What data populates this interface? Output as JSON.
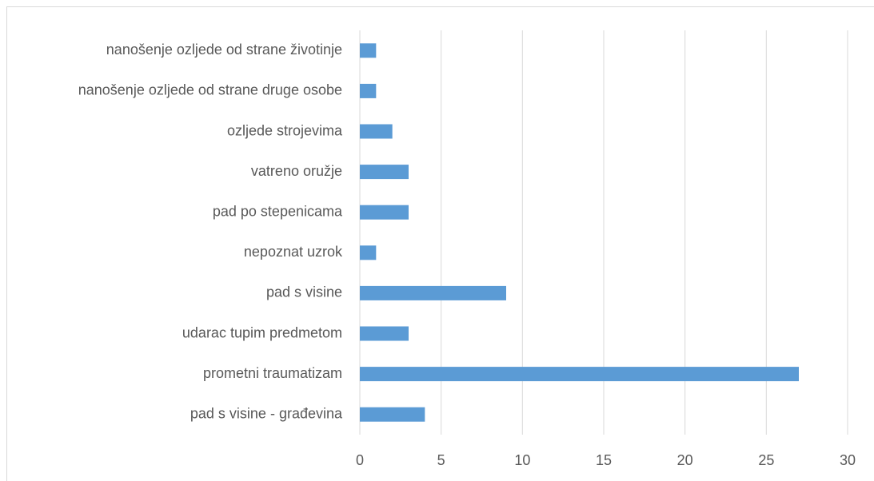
{
  "chart_data": {
    "type": "bar",
    "orientation": "horizontal",
    "categories": [
      "nanošenje ozljede od strane životinje",
      "nanošenje ozljede od strane druge osobe",
      "ozljede strojevima",
      "vatreno oružje",
      "pad po stepenicama",
      "nepoznat uzrok",
      "pad s visine",
      "udarac tupim predmetom",
      "prometni traumatizam",
      "pad s visine - građevina"
    ],
    "values": [
      1,
      1,
      2,
      3,
      3,
      1,
      9,
      3,
      27,
      4
    ],
    "color": "#5b9bd5",
    "xlim": [
      0,
      30
    ],
    "xticks": [
      0,
      5,
      10,
      15,
      20,
      25,
      30
    ],
    "grid": true
  }
}
